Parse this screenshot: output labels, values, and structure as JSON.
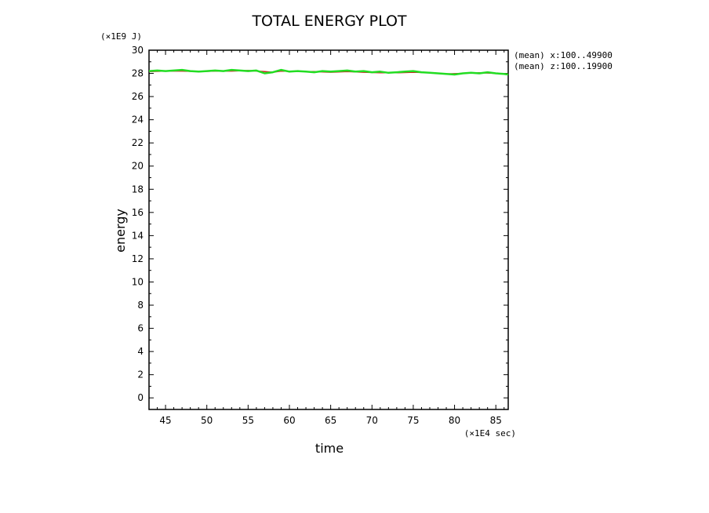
{
  "chart_data": {
    "type": "line",
    "title": "TOTAL ENERGY PLOT",
    "xlabel": "time",
    "ylabel": "energy",
    "x_unit_label": "(×1E4 sec)",
    "y_unit_label": "(×1E9 J)",
    "xlim": [
      43,
      86.5
    ],
    "ylim": [
      -1,
      30
    ],
    "x_ticks": [
      45,
      50,
      55,
      60,
      65,
      70,
      75,
      80,
      85
    ],
    "y_ticks": [
      0,
      2,
      4,
      6,
      8,
      10,
      12,
      14,
      16,
      18,
      20,
      22,
      24,
      26,
      28,
      30
    ],
    "grid": false,
    "legend_position": "top-right",
    "series": [
      {
        "name": "(mean) x:100..49900",
        "color": "#cc2222",
        "x": [
          43,
          45,
          47,
          49,
          51,
          53,
          55,
          57,
          58,
          59,
          61,
          63,
          65,
          67,
          69,
          71,
          73,
          75,
          77,
          79,
          81,
          83,
          85,
          86.5
        ],
        "y": [
          28.15,
          28.2,
          28.2,
          28.15,
          28.2,
          28.2,
          28.25,
          28.15,
          28.1,
          28.2,
          28.15,
          28.15,
          28.1,
          28.15,
          28.1,
          28.05,
          28.05,
          28.1,
          28.05,
          27.95,
          28.0,
          28.05,
          28.0,
          27.95
        ]
      },
      {
        "name": "(mean) z:100..19900",
        "color": "#22dd22",
        "x": [
          43,
          44,
          45,
          46,
          47,
          48,
          49,
          50,
          51,
          52,
          53,
          54,
          55,
          56,
          57,
          58,
          59,
          60,
          61,
          62,
          63,
          64,
          65,
          66,
          67,
          68,
          69,
          70,
          71,
          72,
          73,
          74,
          75,
          76,
          77,
          78,
          79,
          80,
          81,
          82,
          83,
          84,
          85,
          86,
          86.5
        ],
        "y": [
          28.2,
          28.25,
          28.2,
          28.25,
          28.3,
          28.2,
          28.15,
          28.2,
          28.25,
          28.2,
          28.3,
          28.25,
          28.2,
          28.25,
          28.0,
          28.1,
          28.3,
          28.15,
          28.2,
          28.15,
          28.1,
          28.2,
          28.15,
          28.2,
          28.25,
          28.15,
          28.2,
          28.1,
          28.15,
          28.05,
          28.1,
          28.15,
          28.2,
          28.1,
          28.05,
          28.0,
          27.95,
          27.9,
          28.0,
          28.05,
          28.0,
          28.1,
          28.0,
          27.95,
          27.9
        ]
      }
    ]
  }
}
